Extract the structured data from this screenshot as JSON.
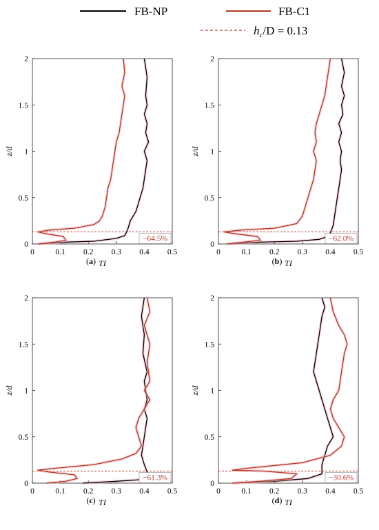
{
  "legend": {
    "np_label": "FB-NP",
    "c1_label": "FB-C1",
    "hc_prefix": "h",
    "hc_sub": "c",
    "hc_suffix": "/D = 0.13"
  },
  "colors": {
    "np": "#000000",
    "c1": "#b03a1a",
    "dashed": "#c0392b",
    "pink_glow": "#f4b6c8"
  },
  "chart_data": [
    {
      "type": "line",
      "label": "(a)",
      "xlabel": "TI",
      "ylabel": "z/d",
      "xlim": [
        0,
        0.5
      ],
      "ylim": [
        0,
        2
      ],
      "xticks": [
        "0",
        "0.1",
        "0.2",
        "0.3",
        "0.4",
        "0.5"
      ],
      "yticks": [
        "0",
        "0.5",
        "1",
        "1.5",
        "2"
      ],
      "hc_line": 0.13,
      "annotation": "−64.5%",
      "series": [
        {
          "name": "FB-NP",
          "x": [
            0.02,
            0.12,
            0.22,
            0.3,
            0.33,
            0.335,
            0.34,
            0.345,
            0.35,
            0.36,
            0.37,
            0.375,
            0.38,
            0.385,
            0.39,
            0.395,
            0.4,
            0.405,
            0.41,
            0.4,
            0.415,
            0.405,
            0.41,
            0.4,
            0.41,
            0.405,
            0.41,
            0.4
          ],
          "y": [
            0.0,
            0.02,
            0.03,
            0.06,
            0.09,
            0.12,
            0.15,
            0.2,
            0.25,
            0.3,
            0.35,
            0.4,
            0.45,
            0.5,
            0.55,
            0.6,
            0.7,
            0.8,
            0.9,
            1.0,
            1.1,
            1.2,
            1.3,
            1.4,
            1.5,
            1.6,
            1.8,
            2.0
          ]
        },
        {
          "name": "FB-C1",
          "x": [
            0.02,
            0.08,
            0.12,
            0.11,
            0.05,
            0.02,
            0.06,
            0.15,
            0.22,
            0.24,
            0.25,
            0.26,
            0.265,
            0.27,
            0.28,
            0.285,
            0.29,
            0.295,
            0.3,
            0.31,
            0.315,
            0.32,
            0.325,
            0.33,
            0.32,
            0.33,
            0.325
          ],
          "y": [
            0.0,
            0.02,
            0.04,
            0.08,
            0.11,
            0.13,
            0.15,
            0.17,
            0.21,
            0.25,
            0.3,
            0.4,
            0.5,
            0.6,
            0.7,
            0.8,
            0.9,
            1.0,
            1.1,
            1.2,
            1.3,
            1.4,
            1.5,
            1.6,
            1.7,
            1.85,
            2.0
          ]
        }
      ]
    },
    {
      "type": "line",
      "label": "(b)",
      "xlabel": "TI",
      "ylabel": "z/d",
      "xlim": [
        0,
        0.5
      ],
      "ylim": [
        0,
        2
      ],
      "xticks": [
        "0",
        "0.1",
        "0.2",
        "0.3",
        "0.4",
        "0.5"
      ],
      "yticks": [
        "0",
        "0.5",
        "1",
        "1.5",
        "2"
      ],
      "hc_line": 0.13,
      "annotation": "−62.0%",
      "series": [
        {
          "name": "FB-NP",
          "x": [
            0.03,
            0.15,
            0.28,
            0.36,
            0.39,
            0.4,
            0.405,
            0.41,
            0.415,
            0.42,
            0.425,
            0.43,
            0.435,
            0.44,
            0.435,
            0.44,
            0.43,
            0.44,
            0.43,
            0.445,
            0.44,
            0.45,
            0.44,
            0.45,
            0.44
          ],
          "y": [
            0.0,
            0.02,
            0.03,
            0.05,
            0.08,
            0.12,
            0.16,
            0.2,
            0.3,
            0.4,
            0.5,
            0.6,
            0.7,
            0.8,
            0.9,
            1.0,
            1.1,
            1.2,
            1.3,
            1.4,
            1.5,
            1.6,
            1.7,
            1.85,
            2.0
          ]
        },
        {
          "name": "FB-C1",
          "x": [
            0.03,
            0.09,
            0.15,
            0.14,
            0.06,
            0.02,
            0.08,
            0.2,
            0.28,
            0.3,
            0.31,
            0.32,
            0.33,
            0.34,
            0.345,
            0.35,
            0.34,
            0.35,
            0.345,
            0.35,
            0.36,
            0.37,
            0.38,
            0.39,
            0.4
          ],
          "y": [
            0.0,
            0.02,
            0.04,
            0.08,
            0.11,
            0.13,
            0.15,
            0.17,
            0.22,
            0.3,
            0.4,
            0.5,
            0.6,
            0.7,
            0.8,
            0.9,
            1.0,
            1.1,
            1.2,
            1.3,
            1.4,
            1.5,
            1.6,
            1.8,
            2.0
          ]
        }
      ]
    },
    {
      "type": "line",
      "label": "(c)",
      "xlabel": "TI",
      "ylabel": "z/d",
      "xlim": [
        0,
        0.5
      ],
      "ylim": [
        0,
        2
      ],
      "xticks": [
        "0",
        "0.1",
        "0.2",
        "0.3",
        "0.4",
        "0.5"
      ],
      "yticks": [
        "0",
        "0.5",
        "1",
        "1.5",
        "2"
      ],
      "hc_line": 0.13,
      "annotation": "−61.3%",
      "series": [
        {
          "name": "FB-NP",
          "x": [
            0.18,
            0.3,
            0.4,
            0.43,
            0.41,
            0.4,
            0.39,
            0.395,
            0.4,
            0.405,
            0.41,
            0.4,
            0.41,
            0.405,
            0.4,
            0.41,
            0.395,
            0.4,
            0.39,
            0.4
          ],
          "y": [
            0.0,
            0.02,
            0.04,
            0.07,
            0.12,
            0.2,
            0.3,
            0.4,
            0.5,
            0.6,
            0.7,
            0.8,
            0.9,
            1.0,
            1.1,
            1.2,
            1.4,
            1.6,
            1.8,
            2.0
          ]
        },
        {
          "name": "FB-C1",
          "x": [
            0.05,
            0.12,
            0.16,
            0.15,
            0.06,
            0.02,
            0.08,
            0.22,
            0.32,
            0.37,
            0.39,
            0.38,
            0.37,
            0.38,
            0.4,
            0.42,
            0.4,
            0.42,
            0.41,
            0.42,
            0.4,
            0.42,
            0.41
          ],
          "y": [
            0.0,
            0.02,
            0.05,
            0.09,
            0.12,
            0.14,
            0.16,
            0.2,
            0.26,
            0.32,
            0.4,
            0.5,
            0.6,
            0.7,
            0.8,
            0.9,
            1.0,
            1.1,
            1.3,
            1.5,
            1.7,
            1.85,
            2.0
          ]
        }
      ]
    },
    {
      "type": "line",
      "label": "(d)",
      "xlabel": "TI",
      "ylabel": "z/d",
      "xlim": [
        0,
        0.5
      ],
      "ylim": [
        0,
        2
      ],
      "xticks": [
        "0",
        "0.1",
        "0.2",
        "0.3",
        "0.4",
        "0.5"
      ],
      "yticks": [
        "0",
        "0.5",
        "1",
        "1.5",
        "2"
      ],
      "hc_line": 0.13,
      "annotation": "−30.6%",
      "series": [
        {
          "name": "FB-NP",
          "x": [
            0.05,
            0.2,
            0.32,
            0.37,
            0.37,
            0.38,
            0.39,
            0.41,
            0.4,
            0.39,
            0.38,
            0.37,
            0.36,
            0.35,
            0.34,
            0.35,
            0.36,
            0.37,
            0.38,
            0.37
          ],
          "y": [
            0.0,
            0.02,
            0.05,
            0.1,
            0.2,
            0.3,
            0.4,
            0.5,
            0.6,
            0.7,
            0.8,
            0.9,
            1.0,
            1.1,
            1.2,
            1.4,
            1.6,
            1.8,
            1.9,
            2.0
          ]
        },
        {
          "name": "FB-C1",
          "x": [
            0.05,
            0.15,
            0.26,
            0.28,
            0.16,
            0.05,
            0.1,
            0.3,
            0.4,
            0.44,
            0.45,
            0.43,
            0.41,
            0.4,
            0.41,
            0.43,
            0.44,
            0.45,
            0.46,
            0.45,
            0.43,
            0.41,
            0.4
          ],
          "y": [
            0.0,
            0.02,
            0.05,
            0.1,
            0.13,
            0.14,
            0.16,
            0.22,
            0.3,
            0.4,
            0.5,
            0.6,
            0.7,
            0.8,
            0.9,
            1.0,
            1.2,
            1.4,
            1.5,
            1.6,
            1.7,
            1.85,
            2.0
          ]
        }
      ]
    }
  ]
}
